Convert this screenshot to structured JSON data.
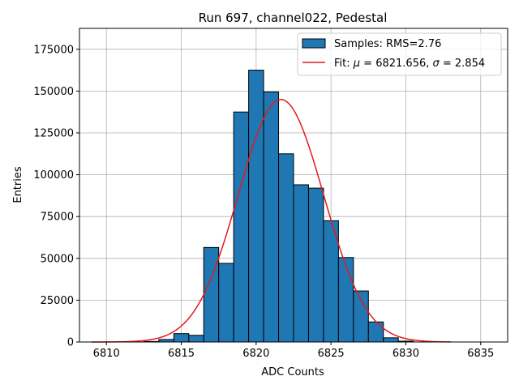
{
  "chart_data": {
    "type": "bar",
    "title": "Run 697, channel022, Pedestal",
    "xlabel": "ADC Counts",
    "ylabel": "Entries",
    "xlim": [
      6808.2,
      6836.8
    ],
    "ylim": [
      0,
      187500
    ],
    "xticks": [
      6810,
      6815,
      6820,
      6825,
      6830,
      6835
    ],
    "yticks": [
      0,
      25000,
      50000,
      75000,
      100000,
      125000,
      150000,
      175000
    ],
    "xtick_labels": [
      "6810",
      "6815",
      "6820",
      "6825",
      "6830",
      "6835"
    ],
    "ytick_labels": [
      "0",
      "25000",
      "50000",
      "75000",
      "100000",
      "125000",
      "150000",
      "175000"
    ],
    "grid": true,
    "legend_position": "top-right",
    "bar_color": "#1f77b4",
    "fit_color": "#e31a1c",
    "bin_width": 1,
    "bins": [
      {
        "x": 6813,
        "value": 300
      },
      {
        "x": 6814,
        "value": 1500
      },
      {
        "x": 6815,
        "value": 5000
      },
      {
        "x": 6816,
        "value": 4000
      },
      {
        "x": 6817,
        "value": 56500
      },
      {
        "x": 6818,
        "value": 47000
      },
      {
        "x": 6819,
        "value": 137500
      },
      {
        "x": 6820,
        "value": 162500
      },
      {
        "x": 6821,
        "value": 149500
      },
      {
        "x": 6822,
        "value": 112500
      },
      {
        "x": 6823,
        "value": 94000
      },
      {
        "x": 6824,
        "value": 92000
      },
      {
        "x": 6825,
        "value": 72500
      },
      {
        "x": 6826,
        "value": 50500
      },
      {
        "x": 6827,
        "value": 30500
      },
      {
        "x": 6828,
        "value": 12000
      },
      {
        "x": 6829,
        "value": 2500
      },
      {
        "x": 6830,
        "value": 500
      }
    ],
    "fit": {
      "mu": 6821.656,
      "sigma": 2.854,
      "amplitude": 145000,
      "x_range": [
        6809,
        6833
      ]
    },
    "legend": {
      "samples_label": "Samples: RMS=2.76",
      "fit_prefix": "Fit: ",
      "fit_mu_symbol": "μ",
      "fit_mu_text": " = 6821.656, ",
      "fit_sigma_symbol": "σ",
      "fit_sigma_text": " = 2.854"
    }
  }
}
